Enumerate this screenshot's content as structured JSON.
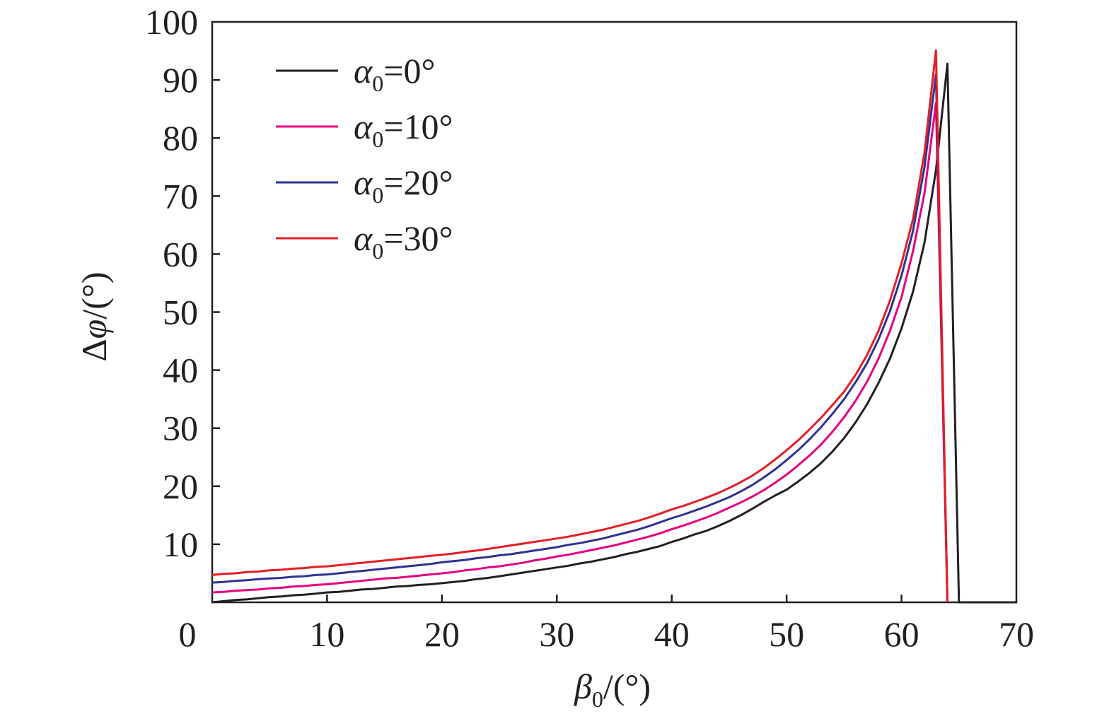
{
  "chart_data": {
    "type": "line",
    "xlabel": "β0/(°)",
    "ylabel": "Δφ/(°)",
    "xlim": [
      0,
      70
    ],
    "ylim": [
      0,
      100
    ],
    "xticks": [
      0,
      10,
      20,
      30,
      40,
      50,
      60,
      70
    ],
    "yticks": [
      10,
      20,
      30,
      40,
      50,
      60,
      70,
      80,
      90,
      100
    ],
    "grid": false,
    "legend_position": "top-left",
    "axis_color": "#231f20",
    "x": [
      0,
      1,
      2,
      3,
      4,
      5,
      6,
      7,
      8,
      9,
      10,
      11,
      12,
      13,
      14,
      15,
      16,
      17,
      18,
      19,
      20,
      21,
      22,
      23,
      24,
      25,
      26,
      27,
      28,
      29,
      30,
      31,
      32,
      33,
      34,
      35,
      36,
      37,
      38,
      39,
      40,
      41,
      42,
      43,
      44,
      45,
      46,
      47,
      48,
      49,
      50,
      51,
      52,
      53,
      54,
      55,
      56,
      57,
      58,
      59,
      60,
      61,
      62,
      63,
      64
    ],
    "series": [
      {
        "name": "α0=0°",
        "color": "#231f20",
        "x": [
          0,
          1,
          2,
          3,
          4,
          5,
          6,
          7,
          8,
          9,
          10,
          11,
          12,
          13,
          14,
          15,
          16,
          17,
          18,
          19,
          20,
          21,
          22,
          23,
          24,
          25,
          26,
          27,
          28,
          29,
          30,
          31,
          32,
          33,
          34,
          35,
          36,
          37,
          38,
          39,
          40,
          41,
          42,
          43,
          44,
          45,
          46,
          47,
          48,
          49,
          50,
          51,
          52,
          53,
          54,
          55,
          56,
          57,
          58,
          59,
          60,
          61,
          62,
          63,
          64,
          65,
          70
        ],
        "y": [
          0.0,
          0.2,
          0.4,
          0.5,
          0.7,
          0.9,
          1.0,
          1.2,
          1.3,
          1.5,
          1.7,
          1.8,
          2.0,
          2.2,
          2.3,
          2.5,
          2.7,
          2.8,
          3.0,
          3.1,
          3.3,
          3.5,
          3.7,
          4.0,
          4.2,
          4.5,
          4.8,
          5.1,
          5.4,
          5.7,
          6.0,
          6.3,
          6.7,
          7.0,
          7.4,
          7.8,
          8.3,
          8.7,
          9.2,
          9.7,
          10.4,
          11.0,
          11.7,
          12.3,
          13.1,
          14.0,
          15.0,
          16.1,
          17.3,
          18.4,
          19.4,
          20.8,
          22.3,
          24.0,
          26.0,
          28.3,
          31.0,
          34.1,
          37.8,
          42.0,
          47.2,
          53.5,
          62.0,
          74.5,
          92.8,
          0,
          0
        ]
      },
      {
        "name": "α0=10°",
        "color": "#e4007f",
        "y": [
          1.7,
          1.8,
          2.0,
          2.1,
          2.2,
          2.4,
          2.5,
          2.7,
          2.8,
          3.0,
          3.1,
          3.3,
          3.5,
          3.7,
          3.9,
          4.1,
          4.2,
          4.4,
          4.6,
          4.8,
          5.0,
          5.2,
          5.5,
          5.7,
          6.0,
          6.2,
          6.5,
          6.8,
          7.2,
          7.5,
          7.9,
          8.2,
          8.6,
          9.0,
          9.4,
          9.8,
          10.3,
          10.8,
          11.3,
          11.9,
          12.6,
          13.2,
          13.9,
          14.6,
          15.4,
          16.3,
          17.2,
          18.2,
          19.3,
          20.6,
          22.0,
          23.6,
          25.3,
          27.2,
          29.4,
          31.9,
          34.7,
          38.0,
          42.0,
          46.8,
          52.6,
          60.5,
          70.5,
          86.0,
          0
        ]
      },
      {
        "name": "α0=20°",
        "color": "#2e3192",
        "y": [
          3.4,
          3.5,
          3.7,
          3.8,
          4.0,
          4.1,
          4.2,
          4.4,
          4.5,
          4.7,
          4.8,
          5.0,
          5.2,
          5.4,
          5.6,
          5.8,
          6.0,
          6.2,
          6.4,
          6.6,
          6.9,
          7.1,
          7.3,
          7.6,
          7.8,
          8.1,
          8.3,
          8.6,
          8.9,
          9.2,
          9.5,
          9.9,
          10.2,
          10.6,
          11.0,
          11.5,
          12.0,
          12.5,
          13.1,
          13.8,
          14.5,
          15.1,
          15.8,
          16.5,
          17.3,
          18.1,
          19.1,
          20.2,
          21.5,
          22.9,
          24.5,
          26.2,
          28.1,
          30.2,
          32.5,
          35.0,
          37.9,
          41.2,
          45.3,
          50.2,
          56.3,
          64.0,
          75.0,
          91.0,
          0
        ]
      },
      {
        "name": "α0=30°",
        "color": "#e31e24",
        "y": [
          4.7,
          4.9,
          5.0,
          5.2,
          5.3,
          5.5,
          5.6,
          5.8,
          5.9,
          6.1,
          6.2,
          6.4,
          6.6,
          6.8,
          7.0,
          7.2,
          7.4,
          7.6,
          7.8,
          8.0,
          8.2,
          8.4,
          8.7,
          8.9,
          9.2,
          9.5,
          9.8,
          10.1,
          10.4,
          10.7,
          11.0,
          11.3,
          11.7,
          12.1,
          12.5,
          13.0,
          13.5,
          14.0,
          14.6,
          15.3,
          16.0,
          16.6,
          17.3,
          18.0,
          18.8,
          19.7,
          20.7,
          21.8,
          23.1,
          24.6,
          26.2,
          27.9,
          29.8,
          31.8,
          34.0,
          36.3,
          39.2,
          42.6,
          46.8,
          52.0,
          58.4,
          66.0,
          77.5,
          95.1,
          0
        ]
      }
    ]
  }
}
